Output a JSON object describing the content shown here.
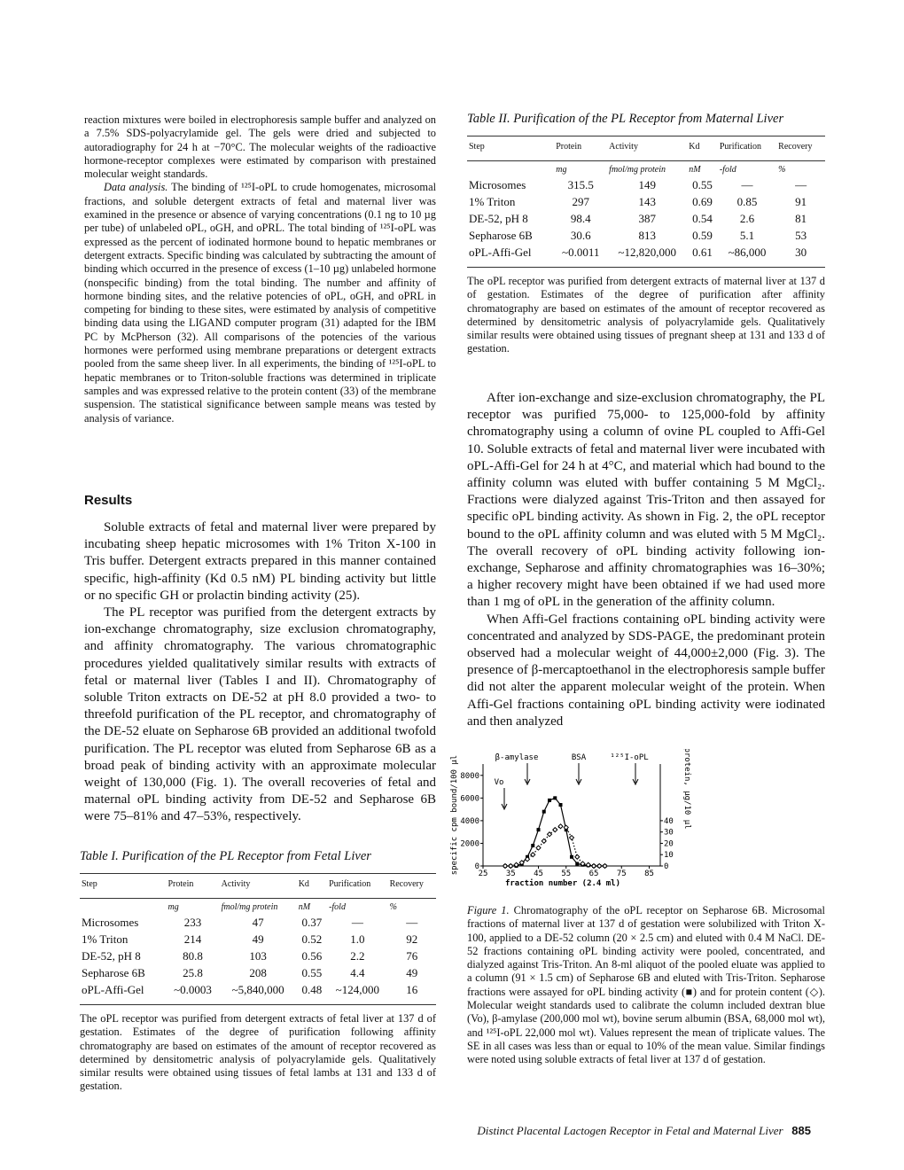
{
  "left": {
    "intro": "reaction mixtures were boiled in electrophoresis sample buffer and analyzed on a 7.5% SDS-polyacrylamide gel. The gels were dried and subjected to autoradiography for 24 h at −70°C. The molecular weights of the radioactive hormone-receptor complexes were estimated by comparison with prestained molecular weight standards.",
    "data_analysis": {
      "heading": "Data analysis.",
      "text": "The binding of ¹²⁵I-oPL to crude homogenates, microsomal fractions, and soluble detergent extracts of fetal and maternal liver was examined in the presence or absence of varying concentrations (0.1 ng to 10 µg per tube) of unlabeled oPL, oGH, and oPRL. The total binding of ¹²⁵I-oPL was expressed as the percent of iodinated hormone bound to hepatic membranes or detergent extracts. Specific binding was calculated by subtracting the amount of binding which occurred in the presence of excess (1–10 µg) unlabeled hormone (nonspecific binding) from the total binding. The number and affinity of hormone binding sites, and the relative potencies of oPL, oGH, and oPRL in competing for binding to these sites, were estimated by analysis of competitive binding data using the LIGAND computer program (31) adapted for the IBM PC by McPherson (32). All comparisons of the potencies of the various hormones were performed using membrane preparations or detergent extracts pooled from the same sheep liver. In all experiments, the binding of ¹²⁵I-oPL to hepatic membranes or to Triton-soluble fractions was determined in triplicate samples and was expressed relative to the protein content (33) of the membrane suspension. The statistical significance between sample means was tested by analysis of variance."
    },
    "results_heading": "Results",
    "results_paragraphs": [
      "Soluble extracts of fetal and maternal liver were prepared by incubating sheep hepatic microsomes with 1% Triton X-100 in Tris buffer. Detergent extracts prepared in this manner contained specific, high-affinity (Kd 0.5 nM) PL binding activity but little or no specific GH or prolactin binding activity (25).",
      "The PL receptor was purified from the detergent extracts by ion-exchange chromatography, size exclusion chromatography, and affinity chromatography. The various chromatographic procedures yielded qualitatively similar results with extracts of fetal or maternal liver (Tables I and II). Chromatography of soluble Triton extracts on DE-52 at pH 8.0 provided a two- to threefold purification of the PL receptor, and chromatography of the DE-52 eluate on Sepharose 6B provided an additional twofold purification. The PL receptor was eluted from Sepharose 6B as a broad peak of binding activity with an approximate molecular weight of 130,000 (Fig. 1). The overall recoveries of fetal and maternal oPL binding activity from DE-52 and Sepharose 6B were 75–81% and 47–53%, respectively."
    ],
    "table1": {
      "title": "Table I. Purification of the PL Receptor from Fetal Liver",
      "headers": [
        "Step",
        "Protein",
        "Activity",
        "Kd",
        "Purification",
        "Recovery"
      ],
      "units": [
        null,
        "mg",
        "fmol/mg protein",
        "nM",
        "-fold",
        "%"
      ],
      "rows": [
        [
          "Microsomes",
          "233",
          "47",
          "0.37",
          "—",
          "—"
        ],
        [
          "1% Triton",
          "214",
          "49",
          "0.52",
          "1.0",
          "92"
        ],
        [
          "DE-52, pH 8",
          "80.8",
          "103",
          "0.56",
          "2.2",
          "76"
        ],
        [
          "Sepharose 6B",
          "25.8",
          "208",
          "0.55",
          "4.4",
          "49"
        ],
        [
          "oPL-Affi-Gel",
          "~0.0003",
          "~5,840,000",
          "0.48",
          "~124,000",
          "16"
        ]
      ],
      "footnote": "The oPL receptor was purified from detergent extracts of fetal liver at 137 d of gestation. Estimates of the degree of purification following affinity chromatography are based on estimates of the amount of receptor recovered as determined by densitometric analysis of polyacrylamide gels. Qualitatively similar results were obtained using tissues of fetal lambs at 131 and 133 d of gestation."
    }
  },
  "right": {
    "table2": {
      "title": "Table II. Purification of the PL Receptor from Maternal Liver",
      "headers": [
        "Step",
        "Protein",
        "Activity",
        "Kd",
        "Purification",
        "Recovery"
      ],
      "units": [
        null,
        "mg",
        "fmol/mg protein",
        "nM",
        "-fold",
        "%"
      ],
      "rows": [
        [
          "Microsomes",
          "315.5",
          "149",
          "0.55",
          "—",
          "—"
        ],
        [
          "1% Triton",
          "297",
          "143",
          "0.69",
          "0.85",
          "91"
        ],
        [
          "DE-52, pH 8",
          "98.4",
          "387",
          "0.54",
          "2.6",
          "81"
        ],
        [
          "Sepharose 6B",
          "30.6",
          "813",
          "0.59",
          "5.1",
          "53"
        ],
        [
          "oPL-Affi-Gel",
          "~0.0011",
          "~12,820,000",
          "0.61",
          "~86,000",
          "30"
        ]
      ],
      "footnote": "The oPL receptor was purified from detergent extracts of maternal liver at 137 d of gestation. Estimates of the degree of purification after affinity chromatography are based on estimates of the amount of receptor recovered as determined by densitometric analysis of polyacrylamide gels. Qualitatively similar results were obtained using tissues of pregnant sheep at 131 and 133 d of gestation."
    },
    "paragraphs": [
      "After ion-exchange and size-exclusion chromatography, the PL receptor was purified 75,000- to 125,000-fold by affinity chromatography using a column of ovine PL coupled to Affi-Gel 10. Soluble extracts of fetal and maternal liver were incubated with oPL-Affi-Gel for 24 h at 4°C, and material which had bound to the affinity column was eluted with buffer containing 5 M MgCl₂. Fractions were dialyzed against Tris-Triton and then assayed for specific oPL binding activity. As shown in Fig. 2, the oPL receptor bound to the oPL affinity column and was eluted with 5 M MgCl₂. The overall recovery of oPL binding activity following ion-exchange, Sepharose and affinity chromatographies was 16–30%; a higher recovery might have been obtained if we had used more than 1 mg of oPL in the generation of the affinity column.",
      "When Affi-Gel fractions containing oPL binding activity were concentrated and analyzed by SDS-PAGE, the predominant protein observed had a molecular weight of 44,000±2,000 (Fig. 3). The presence of β-mercaptoethanol in the electrophoresis sample buffer did not alter the apparent molecular weight of the protein. When Affi-Gel fractions containing oPL binding activity were iodinated and then analyzed"
    ],
    "figure": {
      "chart": {
        "type": "line",
        "x_label": "fraction number (2.4 ml)",
        "y_label": "specific cpm bound/100 µl",
        "y2_label": "protein, µg/10 µl",
        "annotations": [
          "β-amylase",
          "BSA",
          "¹²⁵I-oPL",
          "Vo"
        ],
        "x": [
          33,
          35,
          37,
          39,
          41,
          43,
          45,
          47,
          49,
          51,
          53,
          55,
          57,
          59,
          61,
          63,
          65,
          67,
          69
        ],
        "series": [
          {
            "color": "#000000",
            "values": [
              0,
              0,
              0,
              200,
              800,
              1800,
              3200,
              4800,
              5800,
              6000,
              5400,
              3200,
              800,
              200,
              100,
              50,
              0,
              0,
              0
            ]
          },
          {
            "color": "#000000",
            "axis": "y2",
            "values": [
              0,
              0,
              1,
              3,
              6,
              10,
              16,
              22,
              28,
              32,
              35,
              34,
              25,
              8,
              2,
              1,
              0,
              0,
              0
            ]
          }
        ],
        "xlim": [
          25,
          89
        ],
        "ylim": [
          0,
          9000
        ],
        "y2lim": [
          0,
          90
        ],
        "xticks": [
          25,
          35,
          45,
          55,
          65,
          75,
          85
        ],
        "yticks": [
          0,
          2000,
          4000,
          6000,
          8000
        ],
        "y2ticks": [
          0,
          10,
          20,
          30,
          40
        ]
      },
      "caption_label": "Figure 1.",
      "caption": "Chromatography of the oPL receptor on Sepharose 6B. Microsomal fractions of maternal liver at 137 d of gestation were solubilized with Triton X-100, applied to a DE-52 column (20 × 2.5 cm) and eluted with 0.4 M NaCl. DE-52 fractions containing oPL binding activity were pooled, concentrated, and dialyzed against Tris-Triton. An 8-ml aliquot of the pooled eluate was applied to a column (91 × 1.5 cm) of Sepharose 6B and eluted with Tris-Triton. Sepharose fractions were assayed for oPL binding activity (■) and for protein content (◇). Molecular weight standards used to calibrate the column included dextran blue (Vo), β-amylase (200,000 mol wt), bovine serum albumin (BSA, 68,000 mol wt), and ¹²⁵I-oPL 22,000 mol wt). Values represent the mean of triplicate values. The SE in all cases was less than or equal to 10% of the mean value. Similar findings were noted using soluble extracts of fetal liver at 137 d of gestation."
    }
  },
  "footer": {
    "running_title": "Distinct Placental Lactogen Receptor in Fetal and Maternal Liver",
    "page_number": "885"
  }
}
